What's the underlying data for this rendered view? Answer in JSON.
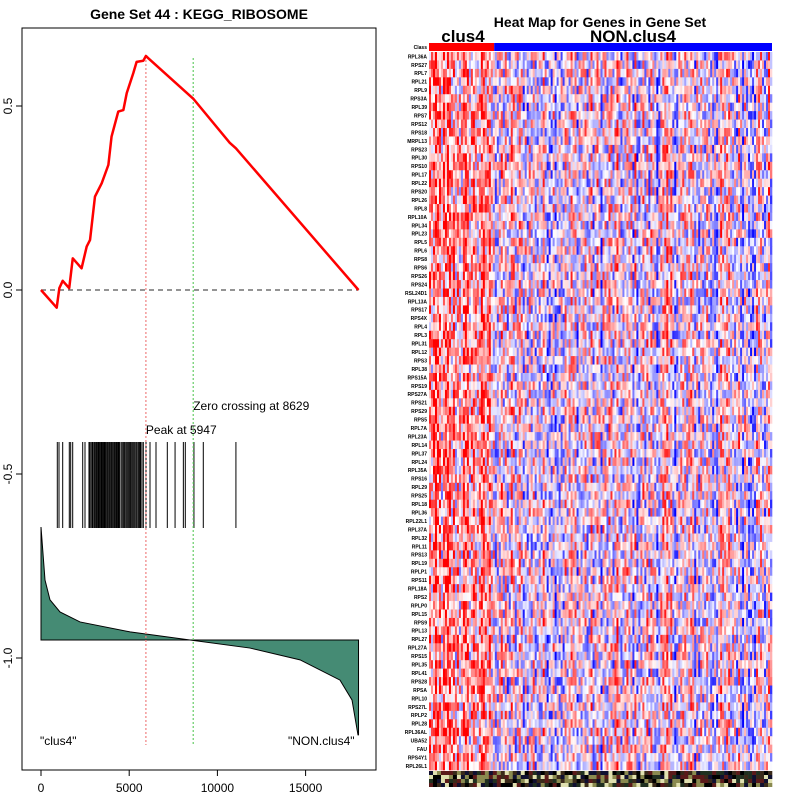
{
  "chart_data": [
    {
      "type": "line",
      "title": "Gene Set  44 : KEGG_RIBOSOME",
      "xlabel": "",
      "ylabel": "",
      "xlim": [
        -1100,
        19100
      ],
      "ylim": [
        -1.3,
        0.72
      ],
      "x_ticks": [
        0,
        5000,
        10000,
        15000
      ],
      "x_tick_labels": [
        "0",
        "5000",
        "10000",
        "15000"
      ],
      "y_ticks": [
        0.5,
        0.0,
        -0.5,
        -1.0
      ],
      "y_tick_labels": [
        "0.5",
        "0.0",
        "-0.5",
        "-1.0"
      ],
      "running_enrichment_score": {
        "x": [
          0,
          890,
          1040,
          1230,
          1600,
          1800,
          2300,
          2590,
          2780,
          3060,
          3440,
          3820,
          4000,
          4380,
          4670,
          4860,
          5230,
          5420,
          5800,
          5947,
          6080,
          8629,
          10700,
          11050,
          18000
        ],
        "y": [
          0,
          -0.048,
          0.005,
          0.025,
          0.005,
          0.086,
          0.059,
          0.118,
          0.136,
          0.254,
          0.29,
          0.34,
          0.417,
          0.485,
          0.489,
          0.535,
          0.589,
          0.62,
          0.623,
          0.636,
          0.63,
          0.52,
          0.4,
          0.385,
          0
        ],
        "color": "#ff0000"
      },
      "peak": {
        "x": 5947,
        "label": "Peak at 5947",
        "color": "#f08080"
      },
      "zero_crossing": {
        "x": 8629,
        "label": "Zero crossing at 8629",
        "color": "#66cc66"
      },
      "hits": [
        924,
        1020,
        1230,
        1604,
        1684,
        1797,
        2364,
        2494,
        2720,
        2780,
        2850,
        2920,
        2990,
        3040,
        3100,
        3150,
        3210,
        3260,
        3320,
        3380,
        3430,
        3490,
        3540,
        3600,
        3650,
        3700,
        3760,
        3810,
        3870,
        3920,
        3980,
        4030,
        4090,
        4150,
        4200,
        4260,
        4310,
        4370,
        4420,
        4480,
        4575,
        4640,
        4700,
        4760,
        4830,
        4890,
        4950,
        5010,
        5070,
        5140,
        5200,
        5260,
        5320,
        5390,
        5450,
        5520,
        5580,
        5640,
        5720,
        5800,
        5952,
        6180,
        6520,
        7160,
        7600,
        8070,
        8180,
        8670,
        9200,
        11050
      ],
      "ranked_metric": {
        "x": [
          0,
          227,
          510,
          1077,
          2211,
          5045,
          8447,
          11848,
          14683,
          16950,
          17630,
          17970,
          18000
        ],
        "y": [
          -0.644,
          -0.788,
          -0.842,
          -0.875,
          -0.902,
          -0.929,
          -0.951,
          -0.973,
          -1.005,
          -1.06,
          -1.114,
          -1.209,
          -1.209
        ],
        "baseline": -0.951,
        "color": "#458b74"
      },
      "left_label": "\"clus4\"",
      "right_label": "\"NON.clus4\""
    },
    {
      "type": "heatmap",
      "title": "Heat Map for Genes in Gene Set",
      "class_row_label": "Class",
      "classes": [
        {
          "name": "clus4",
          "color": "#ff0000",
          "fraction": 0.19
        },
        {
          "name": "NON.clus4",
          "color": "#0000ff",
          "fraction": 0.81
        }
      ],
      "genes": [
        "RPL36A",
        "RPS27",
        "RPL7",
        "RPL21",
        "RPL9",
        "RPS3A",
        "RPL39",
        "RPS7",
        "RPS12",
        "RPS18",
        "MRPL13",
        "RPS23",
        "RPL30",
        "RPS10",
        "RPL17",
        "RPL22",
        "RPS20",
        "RPL26",
        "RPL8",
        "RPL10A",
        "RPL34",
        "RPL23",
        "RPL5",
        "RPL6",
        "RPS8",
        "RPS6",
        "RPS26",
        "RPS24",
        "RSL24D1",
        "RPL13A",
        "RPS17",
        "RPS4X",
        "RPL4",
        "RPL3",
        "RPL31",
        "RPL12",
        "RPS3",
        "RPL38",
        "RPS15A",
        "RPS19",
        "RPS27A",
        "RPS21",
        "RPS29",
        "RPS5",
        "RPL7A",
        "RPL23A",
        "RPL14",
        "RPL37",
        "RPL24",
        "RPL35A",
        "RPS16",
        "RPL29",
        "RPS25",
        "RPL18",
        "RPL36",
        "RPL22L1",
        "RPL37A",
        "RPL32",
        "RPL11",
        "RPS13",
        "RPL19",
        "RPLP1",
        "RPS11",
        "RPL18A",
        "RPS2",
        "RPLP0",
        "RPL15",
        "RPS9",
        "RPL13",
        "RPL27",
        "RPL27A",
        "RPS15",
        "RPL35",
        "RPL41",
        "RPS28",
        "RPSA",
        "RPL10",
        "RPS27L",
        "RPLP2",
        "RPL28",
        "RPL36AL",
        "UBA52",
        "FAU",
        "RPS4Y1",
        "RPL26L1"
      ],
      "n_samples": 172,
      "color_low": "#0000ff",
      "color_mid": "#ffffff",
      "color_high": "#ff0000"
    }
  ]
}
